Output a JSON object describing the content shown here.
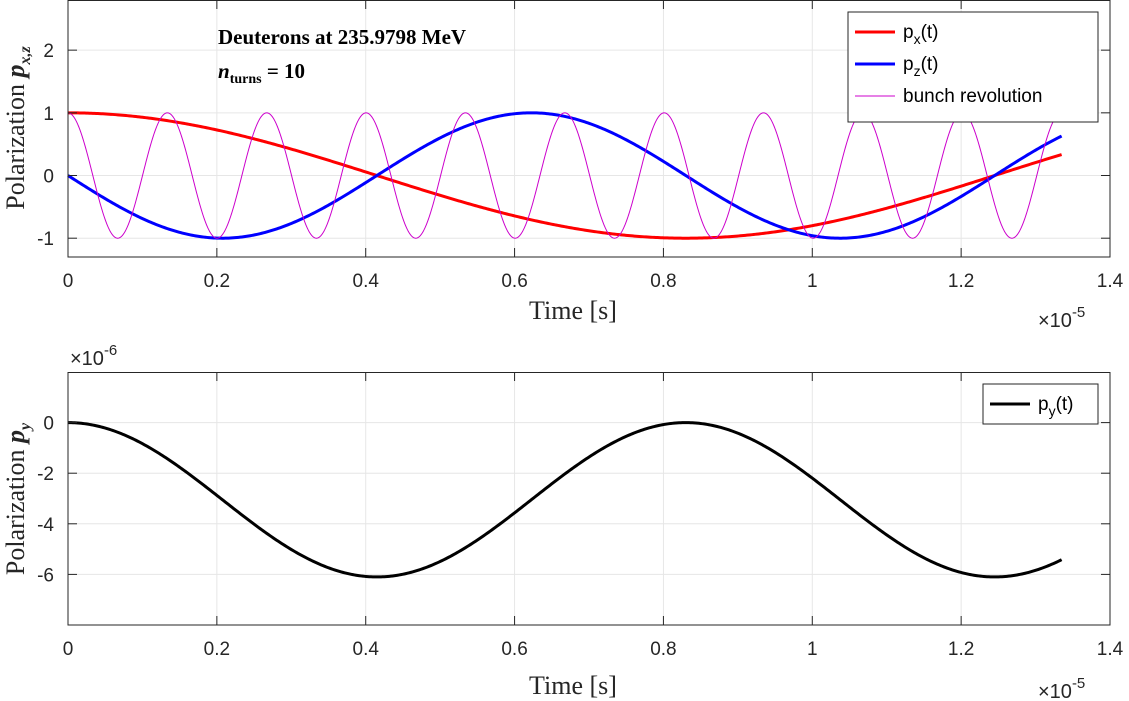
{
  "chart_data": [
    {
      "type": "line",
      "ylabel_main": "Polarization p",
      "ylabel_sub": "x,z",
      "xlabel": "Time [s]",
      "xlim": [
        0,
        1.4
      ],
      "ylim": [
        -1.3,
        2.8
      ],
      "xticks": [
        0,
        0.2,
        0.4,
        0.6,
        0.8,
        1,
        1.2,
        1.4
      ],
      "xtick_labels": [
        "0",
        "0.2",
        "0.4",
        "0.6",
        "0.8",
        "1",
        "1.2",
        "1.4"
      ],
      "yticks": [
        -1,
        0,
        1,
        2
      ],
      "ytick_labels": [
        "-1",
        "0",
        "1",
        "2"
      ],
      "x_multiplier": "×10",
      "x_multiplier_exp": "-5",
      "grid": true,
      "legend_position": "top-right",
      "annotations": {
        "line1": "Deuterons at 235.9798 MeV",
        "line2_var": "n",
        "line2_sub": "turns",
        "line2_rest": " = 10"
      },
      "series": [
        {
          "name_main": "p",
          "name_sub": "x",
          "name_tail": "(t)",
          "color": "#ff0000",
          "width": 3,
          "function": "cos",
          "amplitude": 1,
          "period": 1.66,
          "phase_offset": 0,
          "x_start": 0,
          "x_end": 1.335
        },
        {
          "name_main": "p",
          "name_sub": "z",
          "name_tail": "(t)",
          "color": "#0000ff",
          "width": 3,
          "function": "-sin",
          "amplitude": 1,
          "period": 0.83,
          "phase_offset": 0,
          "x_start": 0,
          "x_end": 1.335
        },
        {
          "name_main": "bunch revolution",
          "name_sub": "",
          "name_tail": "",
          "color": "#cc00cc",
          "width": 1,
          "function": "cos",
          "amplitude": 1,
          "period": 0.1335,
          "phase_offset": 0,
          "x_start": 0,
          "x_end": 1.335
        }
      ]
    },
    {
      "type": "line",
      "ylabel_main": "Polarization p",
      "ylabel_sub": "y",
      "xlabel": "Time [s]",
      "xlim": [
        0,
        1.4
      ],
      "ylim": [
        -8,
        2
      ],
      "xticks": [
        0,
        0.2,
        0.4,
        0.6,
        0.8,
        1,
        1.2,
        1.4
      ],
      "xtick_labels": [
        "0",
        "0.2",
        "0.4",
        "0.6",
        "0.8",
        "1",
        "1.2",
        "1.4"
      ],
      "yticks": [
        -6,
        -4,
        -2,
        0
      ],
      "ytick_labels": [
        "-6",
        "-4",
        "-2",
        "0"
      ],
      "x_multiplier": "×10",
      "x_multiplier_exp": "-5",
      "y_multiplier": "×10",
      "y_multiplier_exp": "-6",
      "grid": true,
      "legend_position": "top-right",
      "series": [
        {
          "name_main": "p",
          "name_sub": "y",
          "name_tail": "(t)",
          "color": "#000000",
          "width": 3,
          "function": "halfcosdip",
          "amplitude": 6.1,
          "period": 0.83,
          "x_start": 0,
          "x_end": 1.335
        }
      ]
    }
  ]
}
